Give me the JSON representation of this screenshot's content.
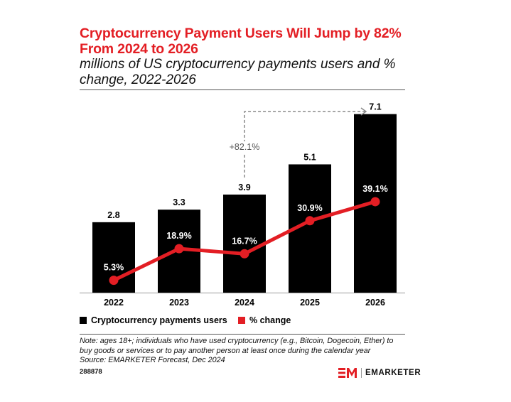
{
  "header": {
    "title": "Cryptocurrency Payment Users Will Jump by 82% From 2024 to 2026",
    "subtitle": "millions of US cryptocurrency payments users and % change, 2022-2026"
  },
  "colors": {
    "bar": "#000000",
    "line": "#e31e24",
    "title": "#e31e24",
    "arrow": "#888888"
  },
  "chart_data": {
    "type": "bar",
    "categories": [
      "2022",
      "2023",
      "2024",
      "2025",
      "2026"
    ],
    "series": [
      {
        "name": "Cryptocurrency payments users",
        "type": "bar",
        "values": [
          2.8,
          3.3,
          3.9,
          5.1,
          7.1
        ],
        "labels": [
          "2.8",
          "3.3",
          "3.9",
          "5.1",
          "7.1"
        ]
      },
      {
        "name": "% change",
        "type": "line",
        "values": [
          5.3,
          18.9,
          16.7,
          30.9,
          39.1
        ],
        "labels": [
          "5.3%",
          "18.9%",
          "16.7%",
          "30.9%",
          "39.1%"
        ]
      }
    ],
    "annotation": {
      "text": "+82.1%",
      "from": "2024",
      "to": "2026"
    },
    "bar_range": [
      0,
      7.4
    ],
    "pct_range": [
      0,
      80
    ]
  },
  "legend": {
    "bars": "Cryptocurrency payments users",
    "line": "% change"
  },
  "footer": {
    "note_lines": [
      "Note: ages 18+; individuals who have used cryptocurrency (e.g., Bitcoin, Dogecoin, Ether) to",
      "buy goods or services or to pay another person at least once during the calendar year",
      "Source: EMARKETER Forecast, Dec 2024"
    ],
    "chart_id": "288878",
    "brand": "EMARKETER"
  }
}
